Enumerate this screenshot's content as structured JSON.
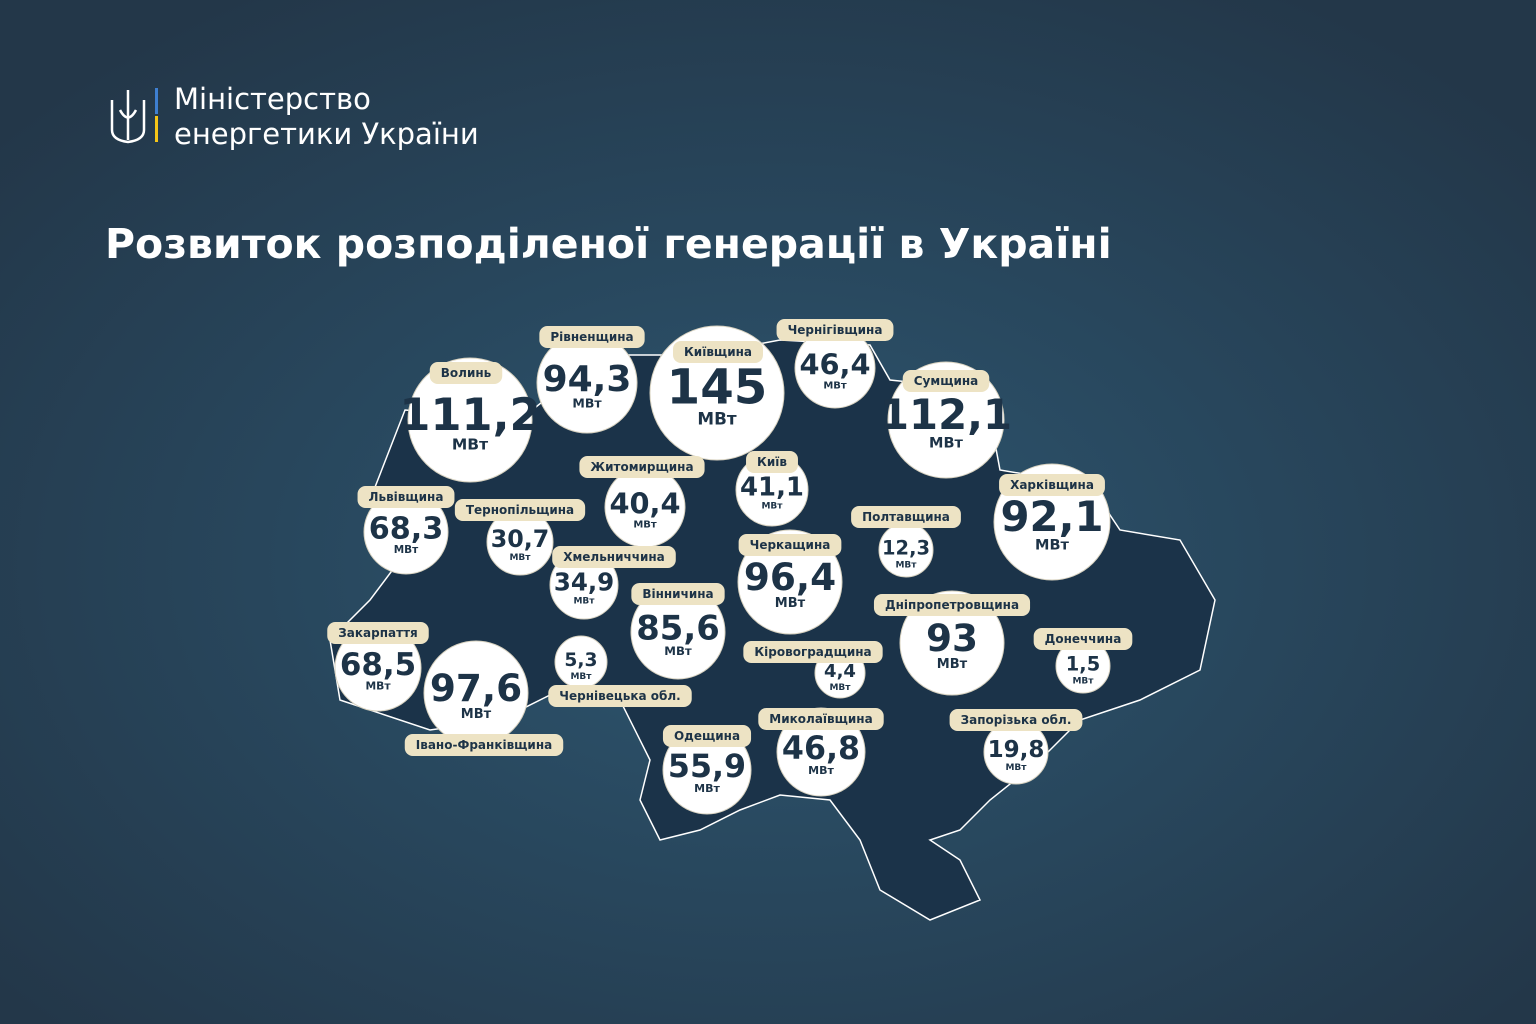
{
  "header": {
    "lines": [
      "Міністерство",
      "енергетики України"
    ]
  },
  "title": "Розвиток розподіленої генерації в Україні",
  "unit": "МВт",
  "regions": [
    {
      "name": "Волинь",
      "value": "111,2"
    },
    {
      "name": "Рівненщина",
      "value": "94,3"
    },
    {
      "name": "Київщина",
      "value": "145"
    },
    {
      "name": "Чернігівщина",
      "value": "46,4"
    },
    {
      "name": "Сумщина",
      "value": "112,1"
    },
    {
      "name": "Житомирщина",
      "value": "40,4"
    },
    {
      "name": "Київ",
      "value": "41,1"
    },
    {
      "name": "Львівщина",
      "value": "68,3"
    },
    {
      "name": "Тернопільщина",
      "value": "30,7"
    },
    {
      "name": "Полтавщина",
      "value": "12,3"
    },
    {
      "name": "Харківщина",
      "value": "92,1"
    },
    {
      "name": "Хмельниччина",
      "value": "34,9"
    },
    {
      "name": "Черкащина",
      "value": "96,4"
    },
    {
      "name": "Вінничина",
      "value": "85,6"
    },
    {
      "name": "Дніпропетровщина",
      "value": "93"
    },
    {
      "name": "Закарпаття",
      "value": "68,5"
    },
    {
      "name": "Івано-Франківщина",
      "value": "97,6"
    },
    {
      "name": "Чернівецька обл.",
      "value": "5,3"
    },
    {
      "name": "Кіровоградщина",
      "value": "4,4"
    },
    {
      "name": "Донеччина",
      "value": "1,5"
    },
    {
      "name": "Одещина",
      "value": "55,9"
    },
    {
      "name": "Миколаївщина",
      "value": "46,8"
    },
    {
      "name": "Запорізька обл.",
      "value": "19,8"
    }
  ]
}
